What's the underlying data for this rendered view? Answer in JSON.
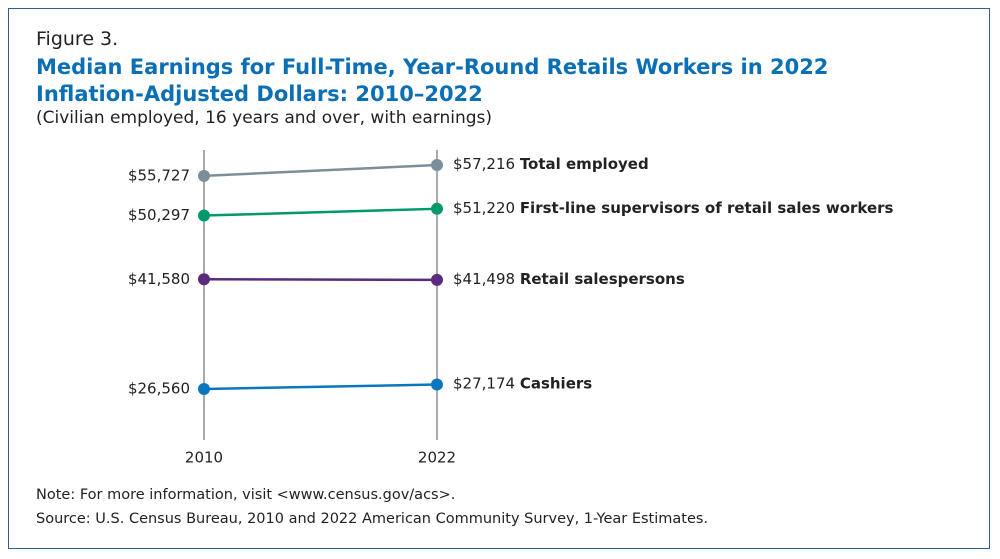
{
  "figure_label": "Figure 3.",
  "chart_data": {
    "type": "slope",
    "title": "Median Earnings for Full-Time, Year-Round Retails Workers in 2022 Inflation-Adjusted Dollars: 2010–2022",
    "subtitle": "(Civilian employed, 16 years and over, with earnings)",
    "categories": [
      "2010",
      "2022"
    ],
    "series": [
      {
        "name": "Total employed",
        "color": "#7b8f99",
        "values": [
          55727,
          57216
        ],
        "value_labels": [
          "$55,727",
          "$57,216"
        ]
      },
      {
        "name": "First-line supervisors of retail sales workers",
        "color": "#00996b",
        "values": [
          50297,
          51220
        ],
        "value_labels": [
          "$50,297",
          "$51,220"
        ]
      },
      {
        "name": "Retail salespersons",
        "color": "#5b2a7d",
        "values": [
          41580,
          41498
        ],
        "value_labels": [
          "$41,580",
          "$41,498"
        ]
      },
      {
        "name": "Cashiers",
        "color": "#0a76bd",
        "values": [
          26560,
          27174
        ],
        "value_labels": [
          "$26,560",
          "$27,174"
        ]
      }
    ]
  },
  "note": "Note: For more information, visit <www.census.gov/acs>.",
  "source": "Source: U.S. Census Bureau, 2010 and 2022 American Community Survey, 1-Year Estimates."
}
